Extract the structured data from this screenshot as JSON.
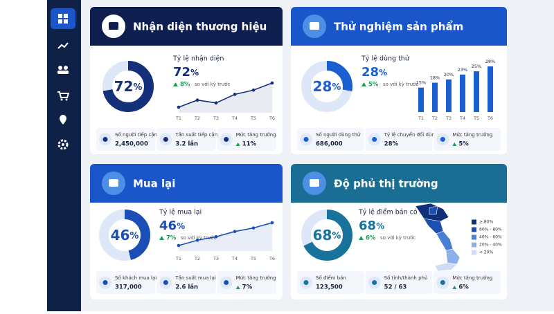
{
  "cards": [
    {
      "title": "Nhận diện thương hiệu",
      "color": "#0e1f4f",
      "accent": "#14307a",
      "donut": {
        "value": 72,
        "unit": "%"
      },
      "kpi": {
        "label": "Tỷ lệ nhận diện",
        "delta": "8%",
        "delta_note": "so với kỳ trước"
      },
      "chart_data": {
        "type": "line",
        "categories": [
          "T1",
          "T2",
          "T3",
          "T4",
          "T5",
          "T6"
        ],
        "values": [
          58,
          63,
          61,
          67,
          70,
          75
        ]
      },
      "stats": [
        {
          "label": "Số người tiếp cận",
          "value": "2,450,000"
        },
        {
          "label": "Tần suất tiếp cận TB",
          "value": "3.2 lần"
        },
        {
          "label": "Mức tăng trưởng",
          "value": "11%"
        }
      ]
    },
    {
      "title": "Thử nghiệm sản phẩm",
      "color": "#1a56c9",
      "accent": "#1a5fd0",
      "donut": {
        "value": 28,
        "unit": "%"
      },
      "kpi": {
        "label": "Tỷ lệ dùng thử",
        "delta": "5%",
        "delta_note": "so với kỳ trước"
      },
      "chart_data": {
        "type": "bar",
        "categories": [
          "T1",
          "T2",
          "T3",
          "T4",
          "T5",
          "T6"
        ],
        "values": [
          15,
          18,
          20,
          23,
          25,
          28
        ],
        "value_labels": [
          "15%",
          "18%",
          "20%",
          "23%",
          "25%",
          "28%"
        ]
      },
      "stats": [
        {
          "label": "Số người dùng thử",
          "value": "686,000"
        },
        {
          "label": "Tỷ lệ chuyển đổi dùng thử",
          "value": "28%"
        },
        {
          "label": "Mức tăng trưởng",
          "value": "5%"
        }
      ]
    },
    {
      "title": "Mua lại",
      "color": "#1a56c9",
      "accent": "#1a4fb8",
      "donut": {
        "value": 46,
        "unit": "%"
      },
      "kpi": {
        "label": "Tỷ lệ mua lại",
        "delta": "7%",
        "delta_note": "so với kỳ trước"
      },
      "chart_data": {
        "type": "line",
        "categories": [
          "T1",
          "T2",
          "T3",
          "T4",
          "T5",
          "T6"
        ],
        "values": [
          30,
          33,
          35,
          38,
          40,
          43
        ]
      },
      "stats": [
        {
          "label": "Số khách mua lại",
          "value": "317,000"
        },
        {
          "label": "Tần suất mua lại TB",
          "value": "2.6 lần"
        },
        {
          "label": "Mức tăng trưởng",
          "value": "7%"
        }
      ]
    },
    {
      "title": "Độ phủ thị trường",
      "color": "#1a6e94",
      "accent": "#17739c",
      "donut": {
        "value": 68,
        "unit": "%"
      },
      "kpi": {
        "label": "Tỷ lệ điểm bán có hàng",
        "delta": "6%",
        "delta_note": "so với kỳ trước"
      },
      "legend": {
        "labels": [
          "≥ 80%",
          "60% - 80%",
          "40% - 60%",
          "20% - 40%",
          "< 20%"
        ],
        "colors": [
          "#0f2f7a",
          "#1d4fb0",
          "#4a7fd6",
          "#8db0ea",
          "#cfdcf5"
        ]
      },
      "stats": [
        {
          "label": "Số điểm bán",
          "value": "123,500"
        },
        {
          "label": "Số tỉnh/thành phủ",
          "value": "52 / 63"
        },
        {
          "label": "Mức tăng trưởng",
          "value": "6%"
        }
      ]
    }
  ]
}
